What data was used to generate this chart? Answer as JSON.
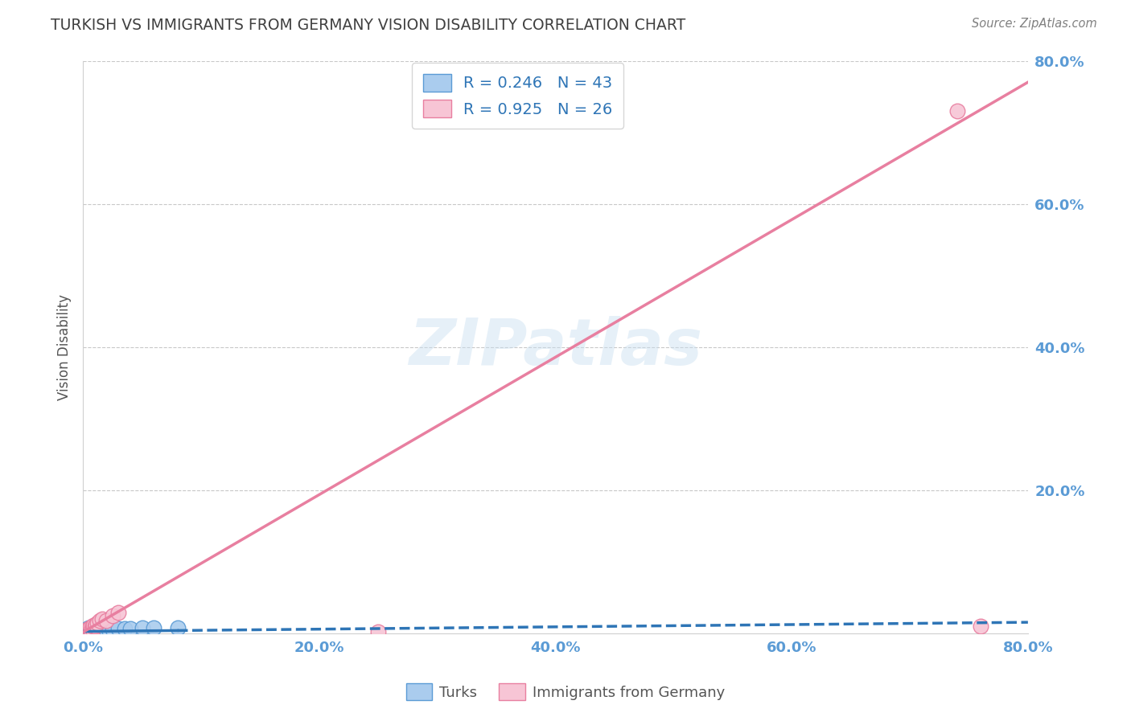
{
  "title": "TURKISH VS IMMIGRANTS FROM GERMANY VISION DISABILITY CORRELATION CHART",
  "source_text": "Source: ZipAtlas.com",
  "watermark": "ZIPatlas",
  "ylabel": "Vision Disability",
  "xlim": [
    0.0,
    0.8
  ],
  "ylim": [
    0.0,
    0.8
  ],
  "ytick_positions": [
    0.0,
    0.2,
    0.4,
    0.6,
    0.8
  ],
  "xtick_positions": [
    0.0,
    0.2,
    0.4,
    0.6,
    0.8
  ],
  "ytick_labels": [
    "",
    "20.0%",
    "40.0%",
    "60.0%",
    "80.0%"
  ],
  "xtick_labels": [
    "0.0%",
    "20.0%",
    "40.0%",
    "60.0%",
    "80.0%"
  ],
  "tick_color": "#5b9bd5",
  "title_color": "#404040",
  "source_color": "#808080",
  "grid_color": "#c8c8c8",
  "background_color": "#ffffff",
  "turks_fill_color": "#aaccee",
  "turks_edge_color": "#5b9bd5",
  "immigrants_fill_color": "#f7c5d5",
  "immigrants_edge_color": "#e87fa0",
  "turks_line_color": "#2e75b6",
  "immigrants_line_color": "#e87fa0",
  "legend_line1": "R = 0.246   N = 43",
  "legend_line2": "R = 0.925   N = 26",
  "legend_turks_label": "Turks",
  "legend_immigrants_label": "Immigrants from Germany",
  "turks_x": [
    0.001,
    0.002,
    0.002,
    0.003,
    0.003,
    0.003,
    0.004,
    0.004,
    0.004,
    0.005,
    0.005,
    0.005,
    0.005,
    0.006,
    0.006,
    0.006,
    0.007,
    0.007,
    0.007,
    0.008,
    0.008,
    0.009,
    0.009,
    0.01,
    0.01,
    0.011,
    0.011,
    0.012,
    0.012,
    0.013,
    0.014,
    0.015,
    0.016,
    0.018,
    0.02,
    0.022,
    0.025,
    0.03,
    0.035,
    0.04,
    0.05,
    0.06,
    0.08
  ],
  "turks_y": [
    0.003,
    0.004,
    0.005,
    0.002,
    0.004,
    0.006,
    0.003,
    0.005,
    0.007,
    0.002,
    0.004,
    0.006,
    0.008,
    0.003,
    0.005,
    0.007,
    0.003,
    0.005,
    0.007,
    0.003,
    0.006,
    0.004,
    0.007,
    0.003,
    0.006,
    0.004,
    0.007,
    0.004,
    0.006,
    0.004,
    0.005,
    0.005,
    0.006,
    0.005,
    0.006,
    0.006,
    0.006,
    0.007,
    0.007,
    0.007,
    0.008,
    0.008,
    0.008
  ],
  "immigrants_x": [
    0.001,
    0.002,
    0.002,
    0.003,
    0.003,
    0.004,
    0.004,
    0.005,
    0.005,
    0.006,
    0.006,
    0.007,
    0.008,
    0.008,
    0.009,
    0.01,
    0.011,
    0.012,
    0.014,
    0.016,
    0.02,
    0.025,
    0.03,
    0.25,
    0.74,
    0.76
  ],
  "immigrants_y": [
    0.002,
    0.003,
    0.004,
    0.002,
    0.005,
    0.003,
    0.006,
    0.003,
    0.007,
    0.004,
    0.008,
    0.005,
    0.006,
    0.01,
    0.012,
    0.01,
    0.013,
    0.015,
    0.018,
    0.02,
    0.018,
    0.025,
    0.03,
    0.003,
    0.73,
    0.01
  ],
  "turks_line_x0": 0.0,
  "turks_line_x_solid_end": 0.08,
  "turks_line_x1": 0.8,
  "turks_line_slope": 0.016,
  "turks_line_intercept": 0.003,
  "immigrants_line_x0": 0.0,
  "immigrants_line_x1": 0.8,
  "immigrants_line_slope": 0.96,
  "immigrants_line_intercept": 0.002,
  "figsize": [
    14.06,
    8.92
  ],
  "dpi": 100
}
